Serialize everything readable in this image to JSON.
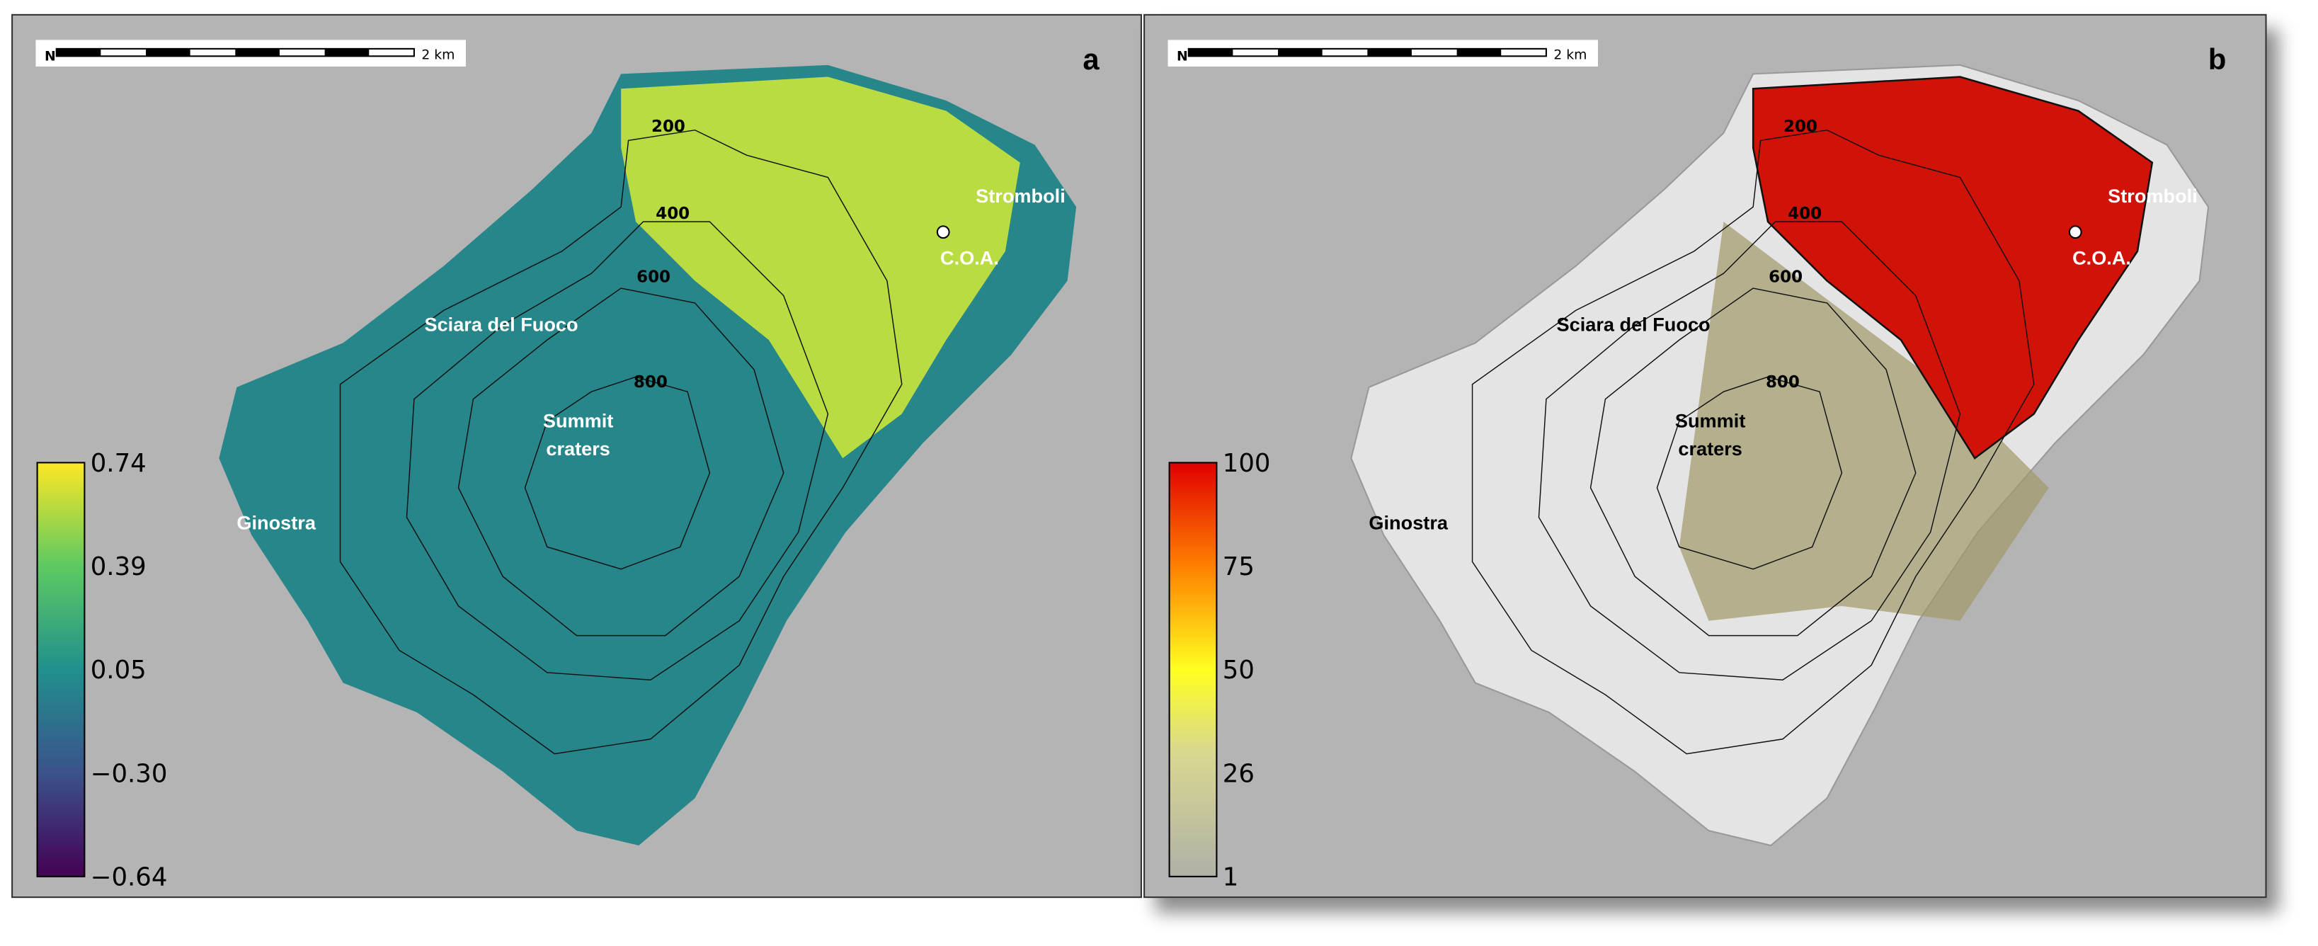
{
  "panels": [
    {
      "label": "a",
      "north": "N",
      "scale_bar": "2 km",
      "places": {
        "stromboli": "Stromboli",
        "coa": "C.O.A.",
        "sciara": "Sciara del Fuoco",
        "summit": [
          "Summit",
          "craters"
        ],
        "ginostra": "Ginostra"
      },
      "contours": [
        "200",
        "400",
        "600",
        "800"
      ],
      "colorbar": [
        "0.74",
        "0.39",
        "0.05",
        "−0.30",
        "−0.64"
      ]
    },
    {
      "label": "b",
      "north": "N",
      "scale_bar": "2 km",
      "places": {
        "stromboli": "Stromboli",
        "coa": "C.O.A.",
        "sciara": "Sciara del Fuoco",
        "summit": [
          "Summit",
          "craters"
        ],
        "ginostra": "Ginostra"
      },
      "contours": [
        "200",
        "400",
        "600",
        "800"
      ],
      "colorbar": [
        "100",
        "75",
        "50",
        "26",
        "1"
      ]
    }
  ]
}
